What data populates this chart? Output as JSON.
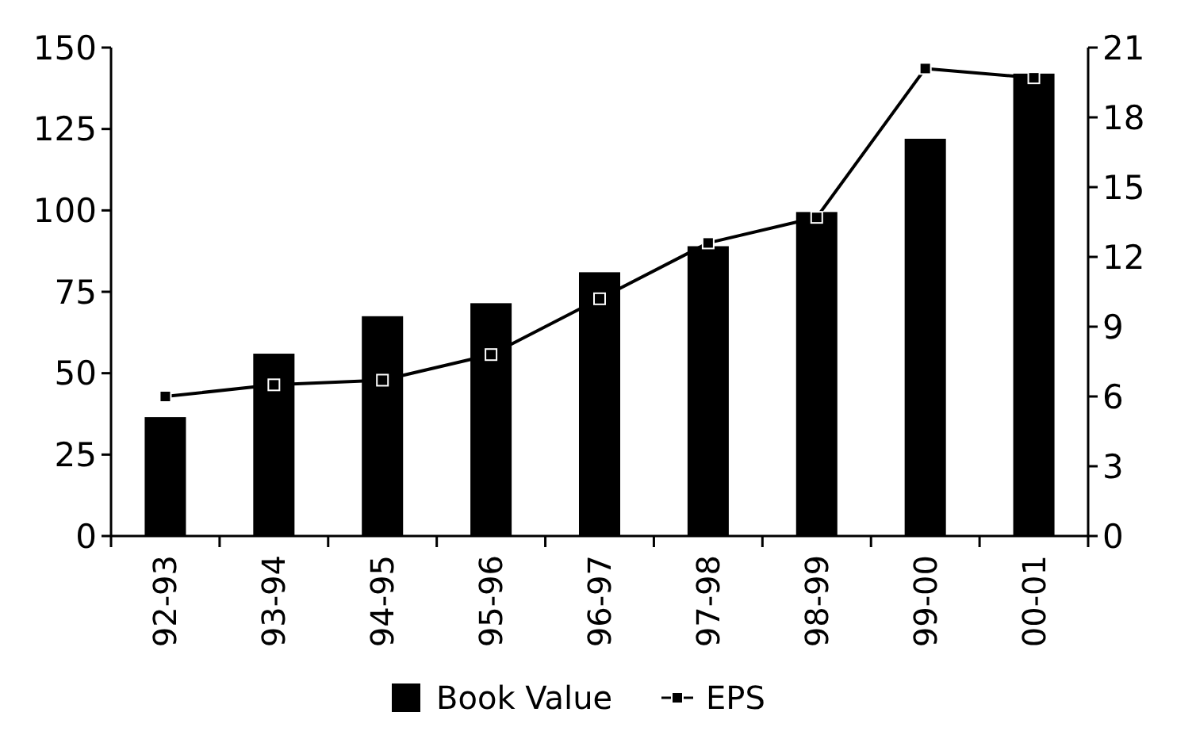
{
  "chart_data": {
    "type": "bar",
    "categories": [
      "92-93",
      "93-94",
      "94-95",
      "95-96",
      "96-97",
      "97-98",
      "98-99",
      "99-00",
      "00-01"
    ],
    "series": [
      {
        "name": "Book Value",
        "color": "#000000",
        "values": [
          36.5,
          56,
          67.5,
          71.5,
          81,
          89,
          99.5,
          122,
          142
        ]
      },
      {
        "name": "EPS",
        "type": "line",
        "axis": "y2",
        "color": "#000000",
        "marker": "square",
        "values": [
          6,
          6.5,
          6.7,
          7.8,
          10.2,
          12.6,
          13.7,
          20.1,
          19.7
        ]
      }
    ],
    "ylim": [
      0,
      150
    ],
    "yticks": [
      0,
      25,
      50,
      75,
      100,
      125,
      150
    ],
    "y2lim": [
      0,
      21
    ],
    "y2ticks": [
      0,
      3,
      6,
      9,
      12,
      15,
      18,
      21
    ],
    "legend": "bottom"
  }
}
